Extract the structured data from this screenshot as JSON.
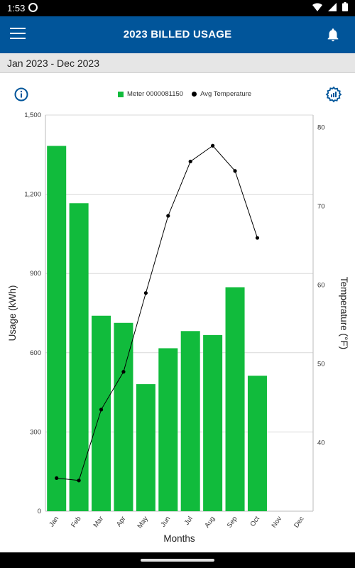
{
  "status_bar": {
    "time": "1:53",
    "icons": [
      "notification-circle-icon",
      "wifi-icon",
      "signal-icon",
      "battery-icon"
    ]
  },
  "app_bar": {
    "title": "2023 BILLED USAGE",
    "menu_icon": "hamburger-menu-icon",
    "bell_icon": "bell-icon"
  },
  "date_range": "Jan 2023 - Dec 2023",
  "toolbar": {
    "info_icon": "info-icon",
    "settings_icon": "chart-settings-icon"
  },
  "colors": {
    "app_bar": "#01559a",
    "bar": "#11bb3c",
    "line": "#000000",
    "icon_blue": "#01559a"
  },
  "chart_data": {
    "type": "bar",
    "categories": [
      "Jan",
      "Feb",
      "Mar",
      "Apr",
      "May",
      "Jun",
      "Jul",
      "Aug",
      "Sep",
      "Oct",
      "Nov",
      "Dec"
    ],
    "series": [
      {
        "name": "Meter 0000081150",
        "type": "bar",
        "axis": "left",
        "values": [
          1383,
          1166,
          740,
          713,
          481,
          617,
          682,
          667,
          848,
          513,
          null,
          null
        ]
      },
      {
        "name": "Avg Temperature",
        "type": "line",
        "axis": "right",
        "values": [
          35.5,
          35.2,
          44.2,
          49.0,
          59.0,
          68.8,
          75.7,
          77.7,
          74.5,
          66.0,
          null,
          null
        ]
      }
    ],
    "xlabel": "Months",
    "ylabel": "Usage (kWh)",
    "y2label": "Temperature (°F)",
    "ylim": [
      0,
      1500
    ],
    "y_ticks": [
      "0",
      "300",
      "600",
      "900",
      "1,200",
      "1,500"
    ],
    "y2lim": [
      31.3,
      81.6
    ],
    "y2_ticks": [
      "40",
      "50",
      "60",
      "70",
      "80"
    ],
    "legend_position": "top-center",
    "grid": true
  }
}
